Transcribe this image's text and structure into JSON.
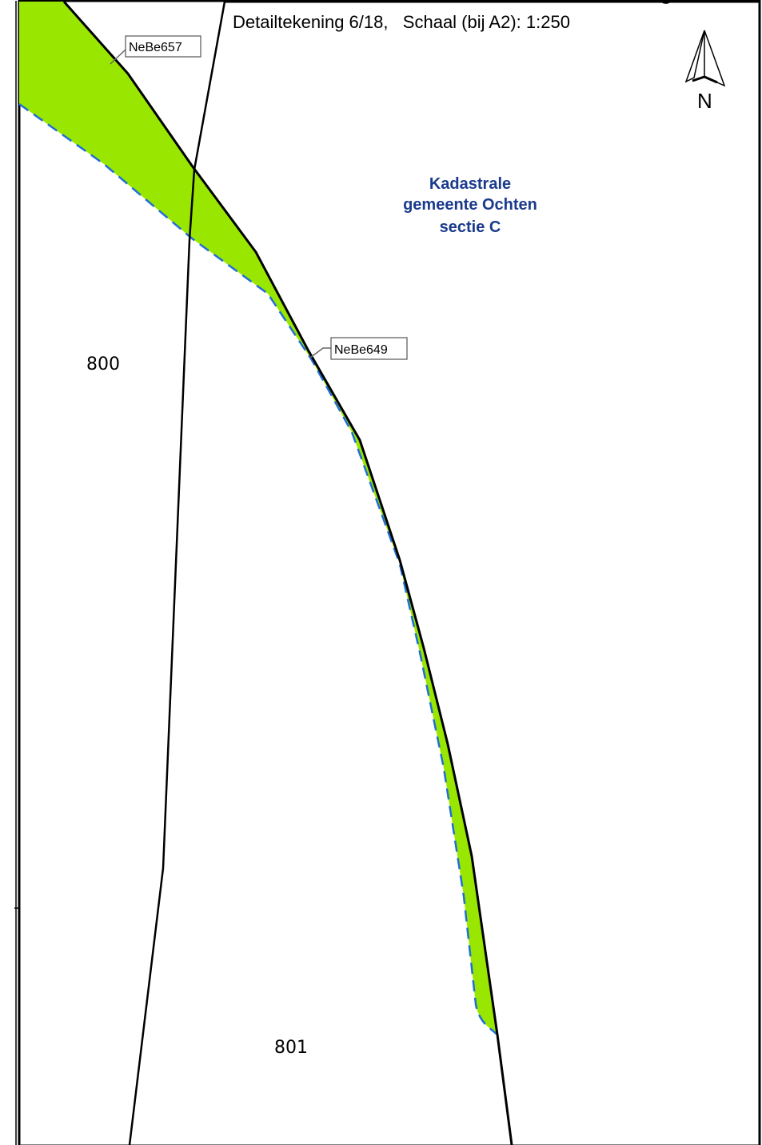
{
  "header": {
    "title": "Detailtekening 6/18,   Schaal (bij A2): 1:250"
  },
  "north_arrow": {
    "label": "N",
    "icon": "north-arrow-icon"
  },
  "cadastral_label": {
    "line1": "Kadastrale",
    "line2": "gemeente Ochten",
    "line3": "sectie C"
  },
  "parcels": {
    "parcel_800": "800",
    "parcel_801": "801"
  },
  "callouts": {
    "callout_1": "NeBe657",
    "callout_2": "NeBe649"
  },
  "colors": {
    "area_fill": "#99e600",
    "dashed_boundary": "#1f6fd6",
    "cadastral_text": "#1a3a8c",
    "line": "#000000"
  }
}
